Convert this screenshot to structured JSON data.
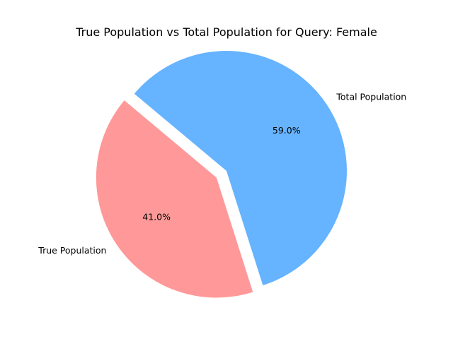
{
  "chart_data": {
    "type": "pie",
    "title": "True Population vs Total Population for Query: Female",
    "slices": [
      {
        "label": "True Population",
        "value": 41.0,
        "pct_label": "41.0%",
        "color": "#ff9999",
        "exploded": true
      },
      {
        "label": "Total Population",
        "value": 59.0,
        "pct_label": "59.0%",
        "color": "#66b3ff",
        "exploded": false
      }
    ],
    "start_angle_deg": 140,
    "direction": "counterclockwise",
    "legend": "none"
  }
}
